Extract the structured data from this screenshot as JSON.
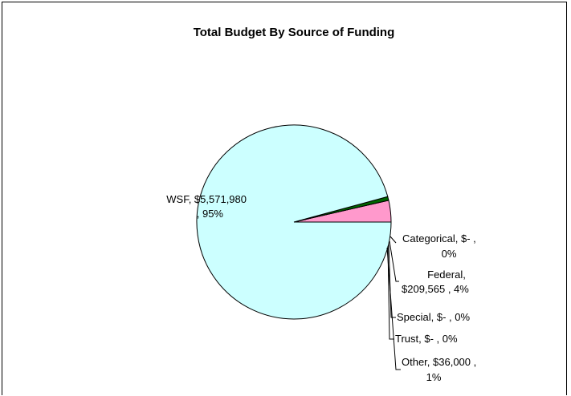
{
  "chart_data": {
    "type": "pie",
    "title": "Total Budget By Source of Funding",
    "slices": [
      {
        "name": "Categorical",
        "value": 0,
        "value_label": "$-",
        "percent": "0%",
        "color": "#FF99CC"
      },
      {
        "name": "Federal",
        "value": 209565,
        "value_label": "$209,565",
        "percent": "4%",
        "color": "#FF99CC"
      },
      {
        "name": "Special",
        "value": 0,
        "value_label": "$-",
        "percent": "0%",
        "color": "#339966"
      },
      {
        "name": "Trust",
        "value": 0,
        "value_label": "$-",
        "percent": "0%",
        "color": "#FFFFFF"
      },
      {
        "name": "Other",
        "value": 36000,
        "value_label": "$36,000",
        "percent": "1%",
        "color": "#006600"
      },
      {
        "name": "WSF",
        "value": 5571980,
        "value_label": "$5,571,980",
        "percent": "95%",
        "color": "#CCFFFF"
      }
    ],
    "labels": {
      "wsf": [
        "WSF,  $5,571,980",
        ", 95%"
      ],
      "categorical": [
        "Categorical,  $-    ,",
        "0%"
      ],
      "federal": [
        "Federal,",
        "$209,565 , 4%"
      ],
      "special": [
        "Special,  $-    , 0%"
      ],
      "trust": [
        "Trust,  $-    , 0%"
      ],
      "other": [
        "Other,  $36,000 ,",
        "1%"
      ]
    }
  }
}
